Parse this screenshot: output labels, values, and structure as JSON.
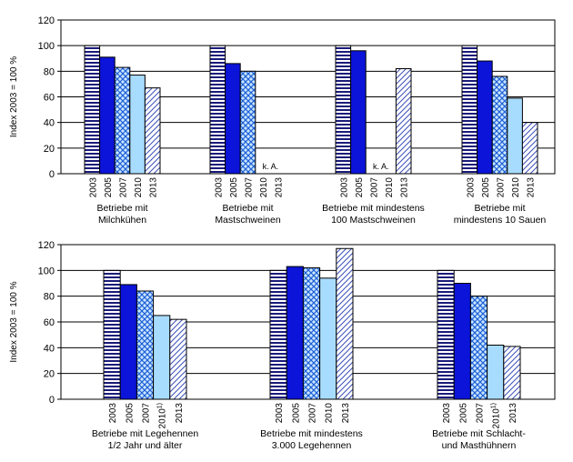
{
  "chart_data": [
    {
      "type": "bar",
      "ylabel": "Index 2003 = 100 %",
      "ylim": [
        0,
        120
      ],
      "yticks": [
        0,
        20,
        40,
        60,
        80,
        100,
        120
      ],
      "grid": true,
      "bar_years": [
        "2003",
        "2005",
        "2007",
        "2010",
        "2013"
      ],
      "groups": [
        {
          "label_lines": [
            "Betriebe mit",
            "Milchkühen"
          ],
          "years": [
            "2003",
            "2005",
            "2007",
            "2010",
            "2013"
          ],
          "values": [
            100,
            91,
            83,
            77,
            67
          ],
          "note": ""
        },
        {
          "label_lines": [
            "Betriebe mit",
            "Mastschweinen"
          ],
          "years": [
            "2003",
            "2005",
            "2007",
            "2010",
            "2013"
          ],
          "values": [
            100,
            86,
            80,
            null,
            null
          ],
          "note": "k. A."
        },
        {
          "label_lines": [
            "Betriebe mit mindestens",
            "100 Mastschweinen"
          ],
          "years": [
            "2003",
            "2005",
            "2007",
            "2010",
            "2013"
          ],
          "values": [
            100,
            96,
            null,
            null,
            82
          ],
          "note": "k. A."
        },
        {
          "label_lines": [
            "Betriebe mit",
            "mindestens 10 Sauen"
          ],
          "years": [
            "2003",
            "2005",
            "2007",
            "2010",
            "2013"
          ],
          "values": [
            100,
            88,
            76,
            59,
            40
          ],
          "note": ""
        }
      ]
    },
    {
      "type": "bar",
      "ylabel": "Index 2003 = 100 %",
      "ylim": [
        0,
        120
      ],
      "yticks": [
        0,
        20,
        40,
        60,
        80,
        100,
        120
      ],
      "grid": true,
      "bar_years": [
        "2003",
        "2005",
        "2007",
        "2010",
        "2013"
      ],
      "groups": [
        {
          "label_lines": [
            "Betriebe mit Legehennen",
            "1/2 Jahr und älter"
          ],
          "years": [
            "2003",
            "2005",
            "2007",
            "20101)",
            "2013"
          ],
          "values": [
            100,
            89,
            84,
            65,
            62
          ],
          "note": ""
        },
        {
          "label_lines": [
            "Betriebe mit mindestens",
            "3.000 Legehennen"
          ],
          "years": [
            "2003",
            "2005",
            "2007",
            "2010",
            "2013"
          ],
          "values": [
            100,
            103,
            102,
            94,
            117
          ],
          "note": ""
        },
        {
          "label_lines": [
            "Betriebe mit Schlacht-",
            "und Masthühnern"
          ],
          "years": [
            "2003",
            "2005",
            "2007",
            "20101)",
            "2013"
          ],
          "values": [
            100,
            90,
            80,
            42,
            41
          ],
          "note": ""
        }
      ]
    }
  ]
}
